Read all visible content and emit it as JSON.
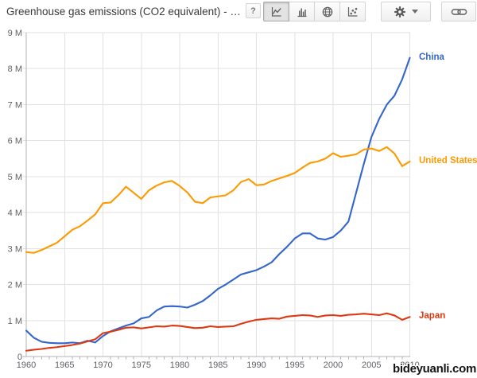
{
  "header": {
    "title": "Greenhouse gas emissions (CO2 equivalent) - …",
    "help_label": "?",
    "chart_type_buttons": [
      {
        "icon": "line-chart-icon",
        "selected": true
      },
      {
        "icon": "bar-chart-icon",
        "selected": false
      },
      {
        "icon": "map-chart-icon",
        "selected": false
      },
      {
        "icon": "scatter-chart-icon",
        "selected": false
      }
    ],
    "settings_icon": "gear-icon",
    "share_icon": "link-icon"
  },
  "watermark": "bideyuanli.com",
  "chart_data": {
    "type": "line",
    "title": "Greenhouse gas emissions (CO2 equivalent)",
    "x_unit": "year",
    "y_unit": "M (millions, kt of CO2 equivalent)",
    "xlim": [
      1960,
      2010
    ],
    "ylim": [
      0,
      9
    ],
    "grid": true,
    "legend_position": "right-of-line-end",
    "y_tick_labels": [
      "0",
      "1 M",
      "2 M",
      "3 M",
      "4 M",
      "5 M",
      "6 M",
      "7 M",
      "8 M",
      "9 M"
    ],
    "x_tick_years": [
      1960,
      1965,
      1970,
      1975,
      1980,
      1985,
      1990,
      1995,
      2000,
      2005,
      2010
    ],
    "x_tick_labels": [
      "1960",
      "1965",
      "1970",
      "1975",
      "1980",
      "1985",
      "1990",
      "1995",
      "2000",
      "2005",
      "2010"
    ],
    "x": [
      1960,
      1961,
      1962,
      1963,
      1964,
      1965,
      1966,
      1967,
      1968,
      1969,
      1970,
      1971,
      1972,
      1973,
      1974,
      1975,
      1976,
      1977,
      1978,
      1979,
      1980,
      1981,
      1982,
      1983,
      1984,
      1985,
      1986,
      1987,
      1988,
      1989,
      1990,
      1991,
      1992,
      1993,
      1994,
      1995,
      1996,
      1997,
      1998,
      1999,
      2000,
      2001,
      2002,
      2003,
      2004,
      2005,
      2006,
      2007,
      2008,
      2009,
      2010
    ],
    "series": [
      {
        "name": "China",
        "color": "#3366CC",
        "values": [
          0.72,
          0.52,
          0.41,
          0.38,
          0.37,
          0.37,
          0.39,
          0.37,
          0.44,
          0.39,
          0.57,
          0.7,
          0.78,
          0.86,
          0.92,
          1.06,
          1.1,
          1.28,
          1.39,
          1.4,
          1.39,
          1.36,
          1.44,
          1.54,
          1.7,
          1.88,
          2.0,
          2.14,
          2.28,
          2.34,
          2.4,
          2.5,
          2.62,
          2.85,
          3.05,
          3.28,
          3.42,
          3.42,
          3.28,
          3.25,
          3.32,
          3.5,
          3.75,
          4.55,
          5.35,
          6.1,
          6.6,
          7.0,
          7.25,
          7.7,
          8.3
        ]
      },
      {
        "name": "United States",
        "color": "#FF9900",
        "values": [
          2.9,
          2.88,
          2.96,
          3.06,
          3.16,
          3.34,
          3.52,
          3.62,
          3.78,
          3.95,
          4.26,
          4.28,
          4.48,
          4.72,
          4.55,
          4.38,
          4.62,
          4.75,
          4.84,
          4.88,
          4.74,
          4.56,
          4.3,
          4.26,
          4.42,
          4.45,
          4.48,
          4.62,
          4.85,
          4.93,
          4.76,
          4.78,
          4.88,
          4.95,
          5.02,
          5.1,
          5.25,
          5.38,
          5.42,
          5.5,
          5.65,
          5.55,
          5.58,
          5.62,
          5.75,
          5.78,
          5.71,
          5.82,
          5.64,
          5.29,
          5.42
        ]
      },
      {
        "name": "Japan",
        "color": "#DC3912",
        "values": [
          0.16,
          0.19,
          0.21,
          0.24,
          0.26,
          0.29,
          0.32,
          0.36,
          0.42,
          0.48,
          0.65,
          0.69,
          0.74,
          0.8,
          0.81,
          0.78,
          0.81,
          0.84,
          0.83,
          0.86,
          0.85,
          0.82,
          0.79,
          0.8,
          0.84,
          0.82,
          0.83,
          0.84,
          0.91,
          0.97,
          1.02,
          1.04,
          1.06,
          1.05,
          1.11,
          1.13,
          1.15,
          1.14,
          1.1,
          1.14,
          1.15,
          1.13,
          1.16,
          1.17,
          1.19,
          1.17,
          1.15,
          1.2,
          1.14,
          1.02,
          1.1
        ]
      }
    ],
    "colors": {
      "grid": "#e2e2e2",
      "axis": "#b3b3b3",
      "tick_label": "#5f5f66"
    }
  }
}
